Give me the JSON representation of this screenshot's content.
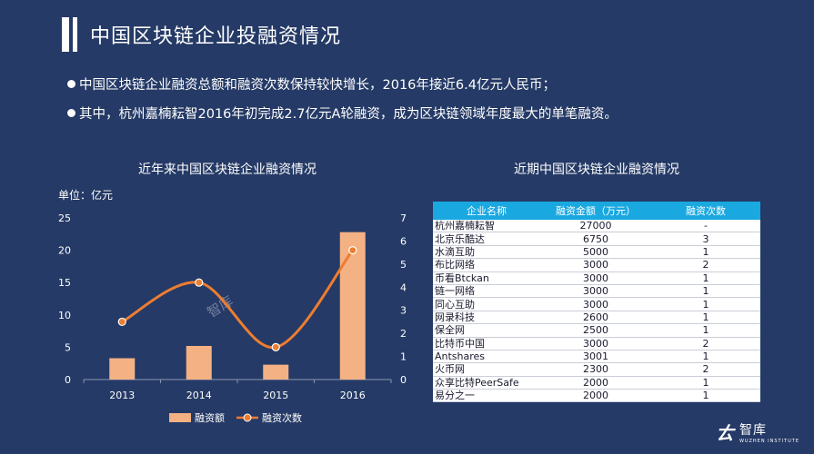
{
  "page": {
    "title": "中国区块链企业投融资情况",
    "bullets": [
      "中国区块链企业融资总额和融资次数保持较快增长，2016年接近6.4亿元人民币；",
      "其中，杭州嘉楠耘智2016年初完成2.7亿元A轮融资，成为区块链领域年度最大的单笔融资。"
    ]
  },
  "chart_data": {
    "type": "bar",
    "title": "近年来中国区块链企业融资情况",
    "ylabel": "单位：亿元",
    "categories": [
      "2013",
      "2014",
      "2015",
      "2016"
    ],
    "ylim": [
      0,
      25
    ],
    "y2lim": [
      0,
      7
    ],
    "yticks": [
      "0",
      "5",
      "10",
      "15",
      "20",
      "25"
    ],
    "y2ticks": [
      "0",
      "1",
      "2",
      "3",
      "4",
      "5",
      "6",
      "7"
    ],
    "series": [
      {
        "name": "融资额",
        "type": "bar",
        "axis": "left",
        "values": [
          3.3,
          5.2,
          2.3,
          22.8
        ],
        "color": "#F4B183"
      },
      {
        "name": "融资次数",
        "type": "line",
        "axis": "right",
        "values": [
          2.5,
          4.2,
          1.4,
          5.6
        ],
        "color": "#ED7D31"
      }
    ],
    "legend_position": "bottom",
    "grid": false
  },
  "watermark": {
    "text": "智库"
  },
  "table": {
    "title": "近期中国区块链企业融资情况",
    "headers": [
      "企业名称",
      "融资金额（万元）",
      "融资次数"
    ],
    "rows": [
      [
        "杭州嘉楠耘智",
        "27000",
        "-"
      ],
      [
        "北京乐酷达",
        "6750",
        "3"
      ],
      [
        "水滴互助",
        "5000",
        "1"
      ],
      [
        "布比网络",
        "3000",
        "2"
      ],
      [
        "币看Btckan",
        "3000",
        "1"
      ],
      [
        "链一网络",
        "3000",
        "1"
      ],
      [
        "同心互助",
        "3000",
        "1"
      ],
      [
        "网录科技",
        "2600",
        "1"
      ],
      [
        "保全网",
        "2500",
        "1"
      ],
      [
        "比特币中国",
        "3000",
        "2"
      ],
      [
        "Antshares",
        "3001",
        "1"
      ],
      [
        "火币网",
        "2300",
        "2"
      ],
      [
        "众享比特PeerSafe",
        "2000",
        "1"
      ],
      [
        "易分之一",
        "2000",
        "1"
      ]
    ]
  },
  "footer": {
    "brand": "智库",
    "sub": "WUZHEN INSTITUTE"
  },
  "colors": {
    "background": "#253A66",
    "header": "#19A8E0",
    "bar": "#F4B183",
    "line": "#ED7D31"
  }
}
